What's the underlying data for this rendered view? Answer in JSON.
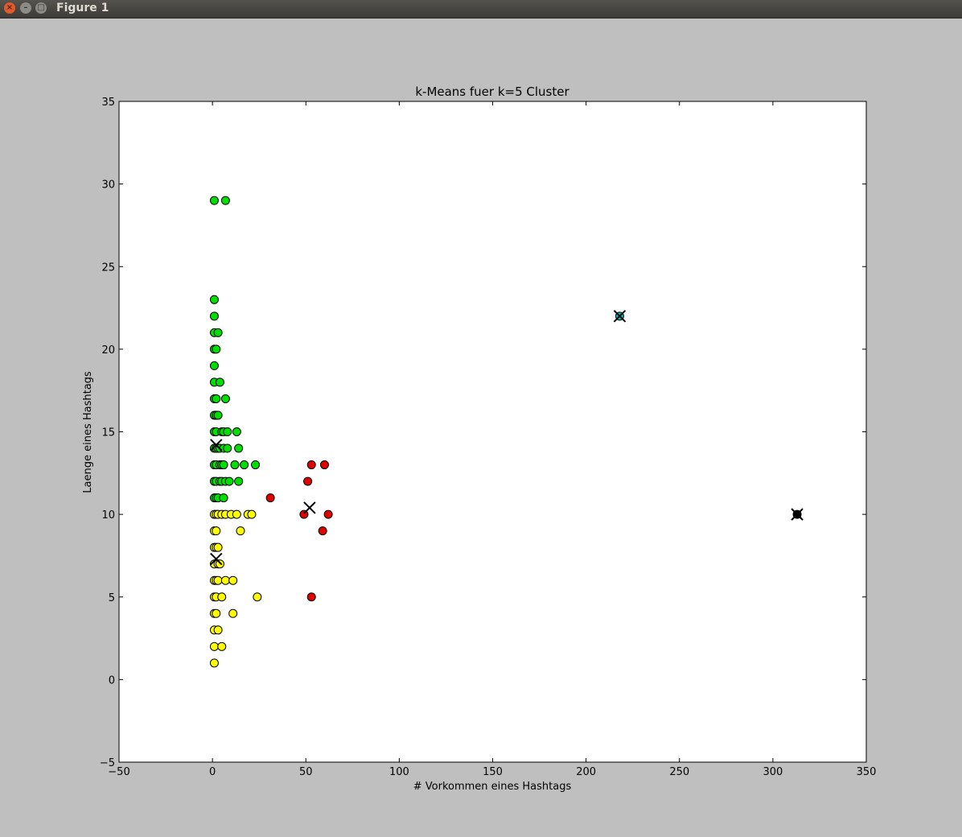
{
  "window": {
    "title": "Figure 1"
  },
  "chart_data": {
    "type": "scatter",
    "title": "k-Means fuer k=5 Cluster",
    "xlabel": "# Vorkommen eines Hashtags",
    "ylabel": "Laenge eines Hashtags",
    "xlim": [
      -50,
      350
    ],
    "ylim": [
      -5,
      35
    ],
    "xticks": [
      -50,
      0,
      50,
      100,
      150,
      200,
      250,
      300,
      350
    ],
    "yticks": [
      -5,
      0,
      5,
      10,
      15,
      20,
      25,
      30,
      35
    ],
    "grid": false,
    "legend": "none",
    "colors": {
      "green": "#00e000",
      "yellow": "#ffff00",
      "red": "#e00000",
      "cyan": "#00bfbf",
      "black": "#000000"
    },
    "series": [
      {
        "color": "green",
        "points": [
          [
            1,
            29
          ],
          [
            7,
            29
          ],
          [
            1,
            23
          ],
          [
            1,
            22
          ],
          [
            1,
            21
          ],
          [
            3,
            21
          ],
          [
            1,
            20
          ],
          [
            2,
            20
          ],
          [
            1,
            19
          ],
          [
            1,
            18
          ],
          [
            4,
            18
          ],
          [
            1,
            17
          ],
          [
            2,
            17
          ],
          [
            7,
            17
          ],
          [
            1,
            16
          ],
          [
            2,
            16
          ],
          [
            3,
            16
          ],
          [
            1,
            15
          ],
          [
            2,
            15
          ],
          [
            5,
            15
          ],
          [
            6,
            15
          ],
          [
            8,
            15
          ],
          [
            13,
            15
          ],
          [
            1,
            14
          ],
          [
            2,
            14
          ],
          [
            3,
            14
          ],
          [
            4,
            14
          ],
          [
            6,
            14
          ],
          [
            8,
            14
          ],
          [
            14,
            14
          ],
          [
            1,
            13
          ],
          [
            2,
            13
          ],
          [
            4,
            13
          ],
          [
            5,
            13
          ],
          [
            6,
            13
          ],
          [
            12,
            13
          ],
          [
            17,
            13
          ],
          [
            23,
            13
          ],
          [
            1,
            12
          ],
          [
            2,
            12
          ],
          [
            4,
            12
          ],
          [
            5,
            12
          ],
          [
            7,
            12
          ],
          [
            9,
            12
          ],
          [
            14,
            12
          ],
          [
            1,
            11
          ],
          [
            2,
            11
          ],
          [
            3,
            11
          ],
          [
            6,
            11
          ]
        ]
      },
      {
        "color": "yellow",
        "points": [
          [
            1,
            10
          ],
          [
            2,
            10
          ],
          [
            3,
            10
          ],
          [
            5,
            10
          ],
          [
            7,
            10
          ],
          [
            10,
            10
          ],
          [
            13,
            10
          ],
          [
            19,
            10
          ],
          [
            21,
            10
          ],
          [
            1,
            9
          ],
          [
            2,
            9
          ],
          [
            15,
            9
          ],
          [
            1,
            8
          ],
          [
            2,
            8
          ],
          [
            3,
            8
          ],
          [
            1,
            7
          ],
          [
            3,
            7
          ],
          [
            4,
            7
          ],
          [
            1,
            6
          ],
          [
            2,
            6
          ],
          [
            3,
            6
          ],
          [
            7,
            6
          ],
          [
            11,
            6
          ],
          [
            1,
            5
          ],
          [
            2,
            5
          ],
          [
            5,
            5
          ],
          [
            24,
            5
          ],
          [
            1,
            4
          ],
          [
            2,
            4
          ],
          [
            11,
            4
          ],
          [
            1,
            3
          ],
          [
            3,
            3
          ],
          [
            1,
            2
          ],
          [
            5,
            2
          ],
          [
            1,
            1
          ]
        ]
      },
      {
        "color": "red",
        "points": [
          [
            53,
            13
          ],
          [
            60,
            13
          ],
          [
            51,
            12
          ],
          [
            31,
            11
          ],
          [
            49,
            10
          ],
          [
            62,
            10
          ],
          [
            59,
            9
          ],
          [
            53,
            5
          ]
        ]
      },
      {
        "color": "cyan",
        "points": [
          [
            218,
            22
          ]
        ]
      },
      {
        "color": "black",
        "points": [
          [
            313,
            10
          ]
        ]
      }
    ],
    "centroids": [
      [
        2,
        14.2
      ],
      [
        52,
        10.4
      ],
      [
        2,
        7.3
      ],
      [
        218,
        22
      ],
      [
        313,
        10
      ]
    ]
  }
}
